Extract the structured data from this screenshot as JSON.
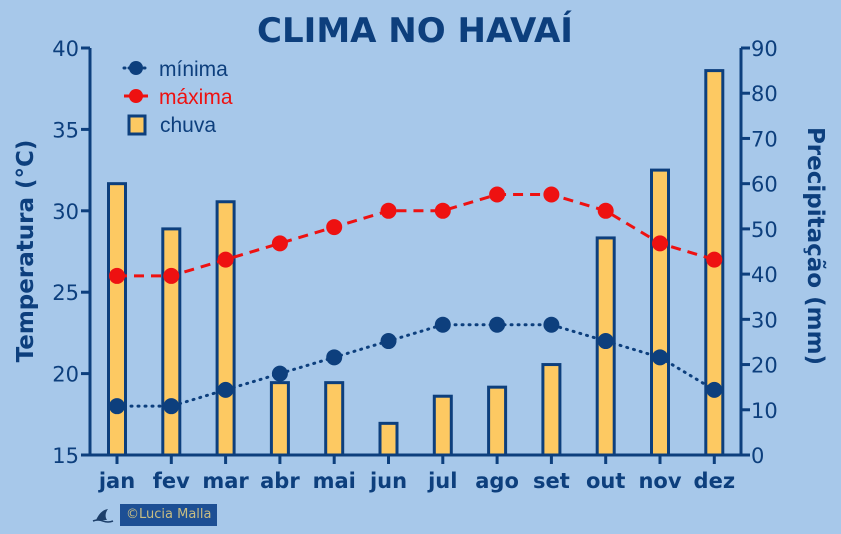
{
  "colors": {
    "background": "#a7c8ea",
    "axis": "#0d3f7d",
    "minima": "#0d3f7d",
    "maxima": "#ee1111",
    "bar_fill": "#fdc962",
    "bar_stroke": "#0d3f7d",
    "credit_bg": "#1d4f94",
    "credit_text": "#c8bd82"
  },
  "chart_data": {
    "type": "bar+line",
    "title": "CLIMA NO HAVAÍ",
    "xlabel": "",
    "ylabel": "Temperatura (°C)",
    "y2label": "Precipitação (mm)",
    "categories": [
      "jan",
      "fev",
      "mar",
      "abr",
      "mai",
      "jun",
      "jul",
      "ago",
      "set",
      "out",
      "nov",
      "dez"
    ],
    "ylim": [
      15,
      40
    ],
    "y2lim": [
      0,
      90
    ],
    "yticks": [
      15,
      20,
      25,
      30,
      35,
      40
    ],
    "y2ticks": [
      0,
      10,
      20,
      30,
      40,
      50,
      60,
      70,
      80,
      90
    ],
    "grid": false,
    "legend_position": "upper left",
    "series": [
      {
        "name": "mínima",
        "type": "line",
        "axis": "left",
        "style": "dotted",
        "marker": "circle",
        "values": [
          18,
          18,
          19,
          20,
          21,
          22,
          23,
          23,
          23,
          22,
          21,
          19
        ]
      },
      {
        "name": "máxima",
        "type": "line",
        "axis": "left",
        "style": "dashed",
        "marker": "circle",
        "values": [
          26,
          26,
          27,
          28,
          29,
          30,
          30,
          31,
          31,
          30,
          28,
          27
        ]
      },
      {
        "name": "chuva",
        "type": "bar",
        "axis": "right",
        "values": [
          60,
          50,
          56,
          16,
          16,
          7,
          13,
          15,
          20,
          48,
          63,
          85
        ]
      }
    ]
  },
  "legend": {
    "items": [
      {
        "label": "mínima",
        "icon": "dotted-line-circle-marker"
      },
      {
        "label": "máxima",
        "icon": "dashed-line-circle-marker"
      },
      {
        "label": "chuva",
        "icon": "bar-swatch"
      }
    ]
  },
  "credit": {
    "icon": "shark-fin-icon",
    "text": "©Lucia Malla"
  }
}
